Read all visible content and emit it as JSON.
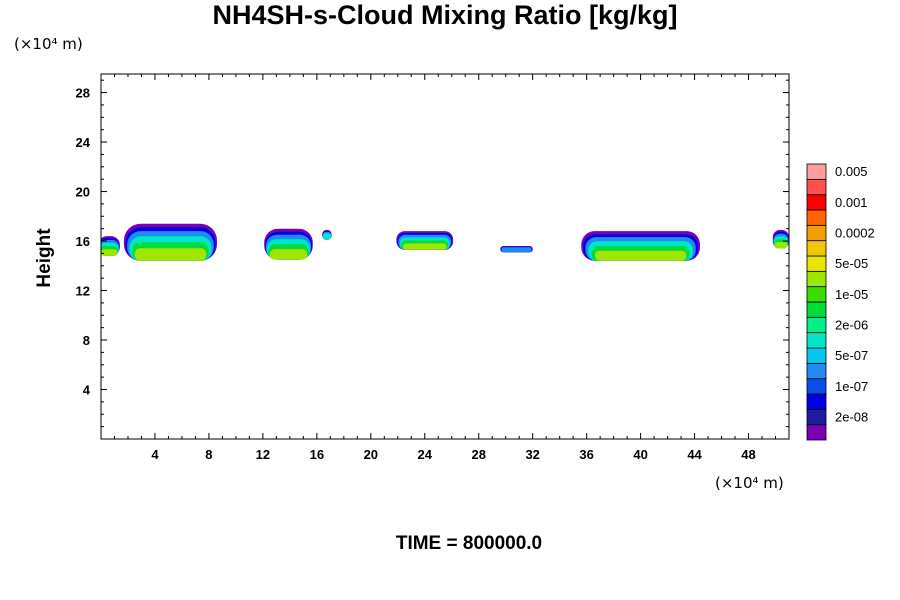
{
  "chart_data": {
    "type": "heatmap",
    "title": "NH4SH-s-Cloud Mixing Ratio [kg/kg]",
    "ylabel": "Height",
    "y_unit": "(×10⁴ m)",
    "x_unit": "(×10⁴ m)",
    "xlim": [
      0,
      51
    ],
    "ylim": [
      0,
      29.5
    ],
    "x_ticks": [
      4,
      8,
      12,
      16,
      20,
      24,
      28,
      32,
      36,
      40,
      44,
      48
    ],
    "y_ticks": [
      4,
      8,
      12,
      16,
      20,
      24,
      28
    ],
    "colorbar": {
      "colors": [
        "#7a00b4",
        "#1c1c9c",
        "#0000e6",
        "#0a50e6",
        "#1e8cf0",
        "#00c8f0",
        "#00e6c8",
        "#00f08c",
        "#00dc3c",
        "#3cdc00",
        "#a0e600",
        "#e6e600",
        "#f0c800",
        "#f0a000",
        "#ff6400",
        "#ff0000",
        "#ff5050",
        "#ff9e9e"
      ],
      "labels": [
        "2e-08",
        "1e-07",
        "5e-07",
        "2e-06",
        "1e-05",
        "5e-05",
        "0.0002",
        "0.001",
        "0.005"
      ]
    },
    "cloud_patches": [
      {
        "x_range": [
          -0.2,
          1.4
        ],
        "y_range": [
          14.8,
          16.4
        ]
      },
      {
        "x_range": [
          1.7,
          8.6
        ],
        "y_range": [
          14.4,
          17.4
        ]
      },
      {
        "x_range": [
          12.1,
          15.7
        ],
        "y_range": [
          14.5,
          17.0
        ]
      },
      {
        "x_range": [
          16.4,
          17.1
        ],
        "y_range": [
          16.1,
          16.9
        ]
      },
      {
        "x_range": [
          21.9,
          26.1
        ],
        "y_range": [
          15.3,
          16.8
        ]
      },
      {
        "x_range": [
          29.6,
          32.0
        ],
        "y_range": [
          15.1,
          15.6
        ]
      },
      {
        "x_range": [
          35.6,
          44.4
        ],
        "y_range": [
          14.4,
          16.8
        ]
      },
      {
        "x_range": [
          49.8,
          51.0
        ],
        "y_range": [
          15.4,
          16.9
        ]
      }
    ]
  },
  "time_label": "TIME = 800000.0"
}
